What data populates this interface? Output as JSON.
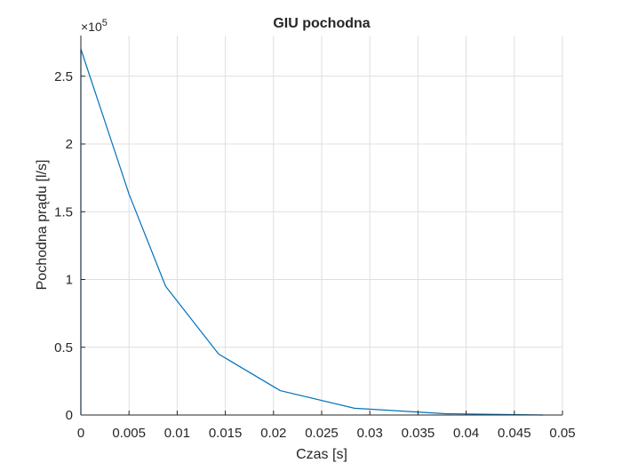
{
  "chart_data": {
    "type": "line",
    "title": "GIU pochodna",
    "xlabel": "Czas [s]",
    "ylabel": "Pochodna prądu [l/s]",
    "y_exponent_label": "×10",
    "y_exponent_power": "5",
    "y_scale": 100000,
    "xlim": [
      0,
      0.05
    ],
    "ylim": [
      0,
      280000
    ],
    "grid": true,
    "x_ticks": [
      0,
      0.005,
      0.01,
      0.015,
      0.02,
      0.025,
      0.03,
      0.035,
      0.04,
      0.045,
      0.05
    ],
    "x_tick_labels": [
      "0",
      "0.005",
      "0.01",
      "0.015",
      "0.02",
      "0.025",
      "0.03",
      "0.035",
      "0.04",
      "0.045",
      "0.05"
    ],
    "y_ticks": [
      0,
      50000,
      100000,
      150000,
      200000,
      250000
    ],
    "y_tick_labels": [
      "0",
      "0.5",
      "1",
      "1.5",
      "2",
      "2.5"
    ],
    "line_color": "#0072bd",
    "series": [
      {
        "x": [
          0,
          0,
          0.005,
          0.0088,
          0.0143,
          0.0207,
          0.0284,
          0.0378,
          0.048
        ],
        "y": [
          0,
          270000,
          163000,
          95000,
          45000,
          18000,
          5000,
          1000,
          0
        ]
      }
    ]
  }
}
